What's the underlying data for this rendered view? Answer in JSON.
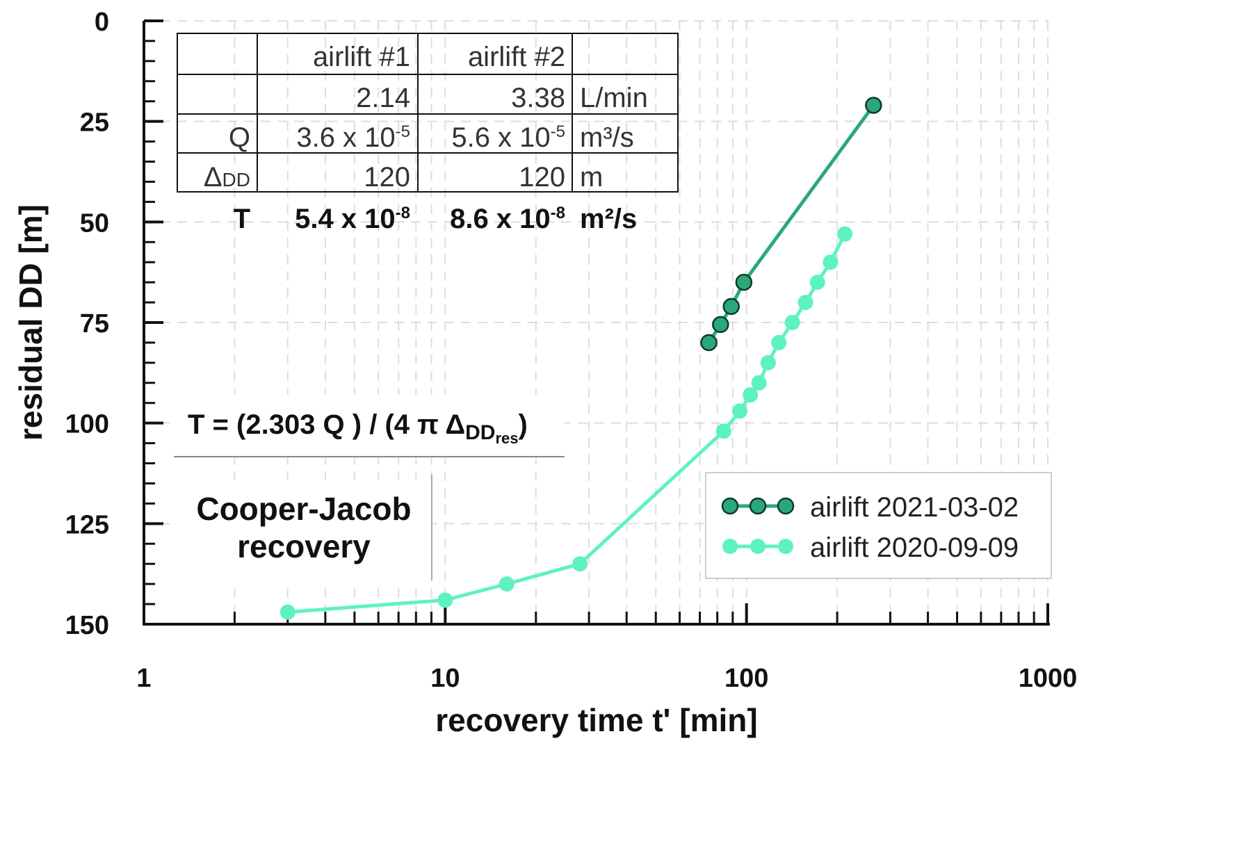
{
  "chart_data": {
    "type": "line",
    "xlabel": "recovery time t' [min]",
    "ylabel": "residual DD [m]",
    "xscale": "log",
    "xlim": [
      1,
      1000
    ],
    "ylim": [
      150,
      0
    ],
    "y_inverted": true,
    "x_ticks": [
      1,
      10,
      100,
      1000
    ],
    "x_tick_labels": [
      "1",
      "10",
      "100",
      "1000"
    ],
    "y_ticks": [
      0,
      25,
      50,
      75,
      100,
      125,
      150
    ],
    "y_tick_labels": [
      "0",
      "25",
      "50",
      "75",
      "100",
      "125",
      "150"
    ],
    "grid": true,
    "legend_position": "bottom-right",
    "series": [
      {
        "name": "airlift 2021-03-02",
        "color": "#2aa87a",
        "x": [
          75,
          82,
          89,
          98,
          264
        ],
        "y": [
          80,
          75.5,
          71,
          65,
          21
        ]
      },
      {
        "name": "airlift 2020-09-09",
        "color": "#5ef2c1",
        "x": [
          3,
          10,
          16,
          28,
          84,
          95,
          103,
          110,
          118,
          128,
          142,
          157,
          172,
          190,
          212
        ],
        "y": [
          147,
          144,
          140,
          135,
          102,
          97,
          93,
          90,
          85,
          80,
          75,
          70,
          65,
          60,
          53
        ]
      }
    ]
  },
  "table": {
    "headers": [
      "",
      "airlift #1",
      "airlift #2",
      ""
    ],
    "rows": [
      {
        "label": "",
        "a1": "2.14",
        "a2": "3.38",
        "unit": "L/min"
      },
      {
        "label": "Q",
        "a1": "3.6 x 10",
        "a1_exp": "-5",
        "a2": "5.6 x 10",
        "a2_exp": "-5",
        "unit": "m³/s"
      },
      {
        "label": "Δ",
        "label_sub": "DD",
        "a1": "120",
        "a2": "120",
        "unit": "m"
      }
    ],
    "bold_row": {
      "label": "T",
      "a1": "5.4 x 10",
      "a1_exp": "-8",
      "a2": "8.6 x 10",
      "a2_exp": "-8",
      "unit": "m²/s"
    }
  },
  "equation": {
    "main": "T = (2.303 Q ) / (4 π Δ",
    "sub": "DD",
    "subsub": "res",
    "close": ")"
  },
  "annotation": {
    "line1": "Cooper-Jacob",
    "line2": "recovery"
  }
}
